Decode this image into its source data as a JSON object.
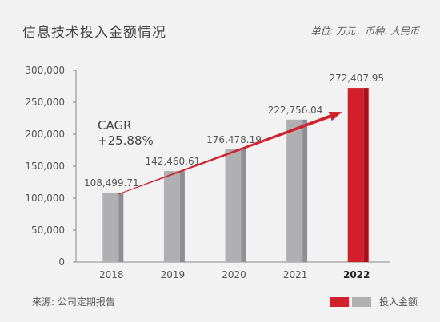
{
  "header": {
    "title": "信息技术投入金额情况",
    "unit_label": "单位: 万元",
    "currency_label": "币种: 人民币"
  },
  "footer": {
    "source": "来源: 公司定期报告",
    "legend_label": "投入金额"
  },
  "colors": {
    "bar_gray": "#b0b0b3",
    "bar_gray_shade": "#8f8f93",
    "bar_red": "#d0202c",
    "bar_red_shade": "#a5121b",
    "arrow": "#d0202c"
  },
  "chart_data": {
    "type": "bar",
    "title": "信息技术投入金额情况",
    "categories": [
      "2018",
      "2019",
      "2020",
      "2021",
      "2022"
    ],
    "values": [
      108499.71,
      142460.61,
      176478.19,
      222756.04,
      272407.95
    ],
    "value_labels": [
      "108,499.71",
      "142,460.61",
      "176,478.19",
      "222,756.04",
      "272,407.95"
    ],
    "highlight_index": 4,
    "ylim": [
      0,
      300000
    ],
    "yticks": [
      0,
      50000,
      100000,
      150000,
      200000,
      250000,
      300000
    ],
    "ytick_labels": [
      "0",
      "50,000",
      "100,000",
      "150,000",
      "200,000",
      "250,000",
      "300,000"
    ],
    "annotation": {
      "line1": "CAGR",
      "line2": "+25.88%"
    },
    "legend_label": "投入金额"
  }
}
